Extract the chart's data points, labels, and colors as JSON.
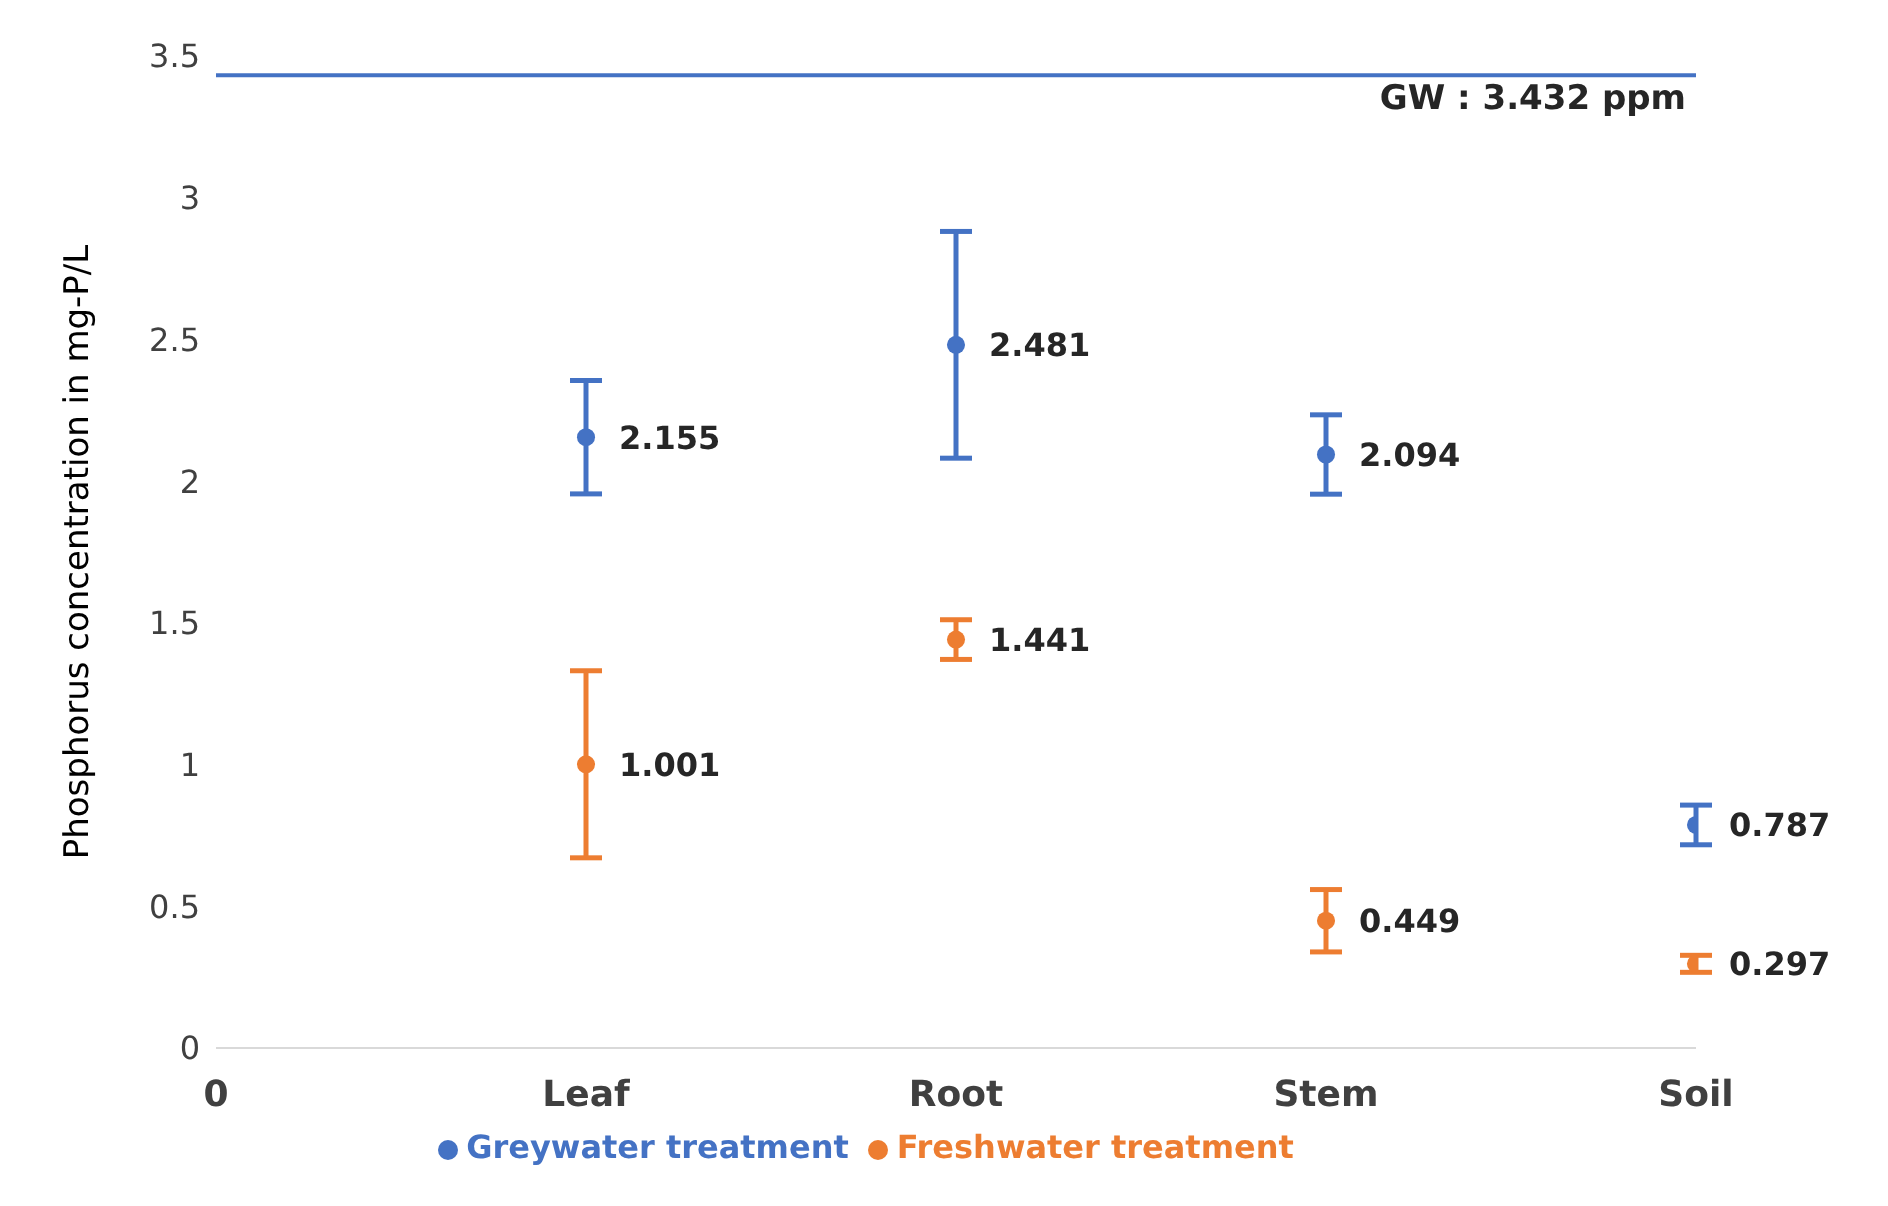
{
  "chart_data": {
    "type": "scatter",
    "ylabel": "Phosphorus concentration in mg-P/L",
    "categories": [
      "0",
      "Leaf",
      "Root",
      "Stem",
      "Soil"
    ],
    "ylim": [
      0,
      3.5
    ],
    "yticks": [
      0,
      0.5,
      1,
      1.5,
      2,
      2.5,
      3,
      3.5
    ],
    "grid": false,
    "legend": "bottom",
    "marker": "circle",
    "data_labels": true,
    "series": [
      {
        "name": "Greywater treatment",
        "color": "#4472c4",
        "values": [
          null,
          2.155,
          2.481,
          2.094,
          0.787
        ],
        "errors": [
          null,
          0.2,
          0.4,
          0.14,
          0.07
        ]
      },
      {
        "name": "Freshwater treatment",
        "color": "#ed7d31",
        "values": [
          null,
          1.001,
          1.441,
          0.449,
          0.297
        ],
        "errors": [
          null,
          0.33,
          0.07,
          0.11,
          0.03
        ]
      }
    ],
    "ref_lines": [
      {
        "axis": "y",
        "value": 3.432,
        "label": "GW : 3.432 ppm",
        "color": "#4472c4"
      }
    ]
  }
}
